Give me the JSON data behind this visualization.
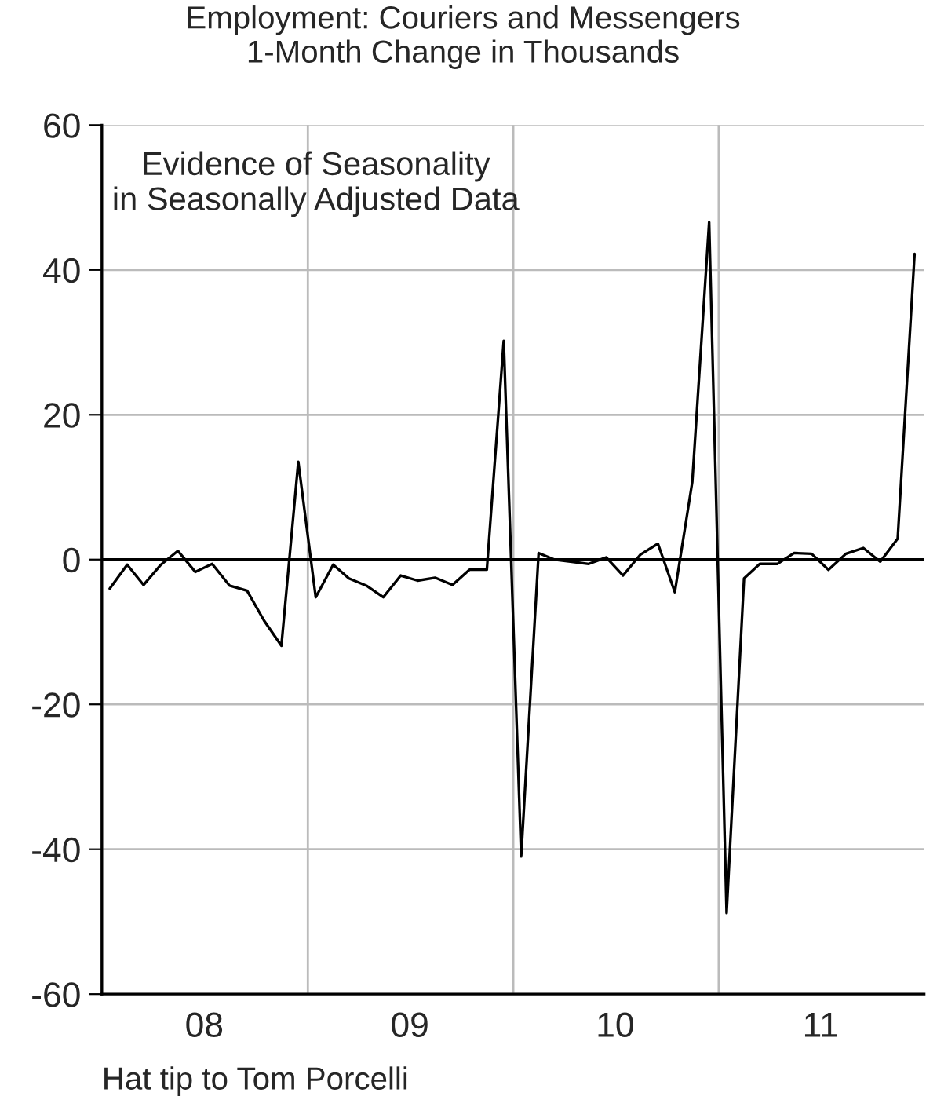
{
  "chart_data": {
    "type": "line",
    "title": "Employment: Couriers and Messengers\n1-Month Change in Thousands",
    "x": [
      "2008-01-15",
      "2008-02-15",
      "2008-03-15",
      "2008-04-15",
      "2008-05-15",
      "2008-06-15",
      "2008-07-15",
      "2008-08-15",
      "2008-09-15",
      "2008-10-15",
      "2008-11-15",
      "2008-12-15",
      "2009-01-15",
      "2009-02-15",
      "2009-03-15",
      "2009-04-15",
      "2009-05-15",
      "2009-06-15",
      "2009-07-15",
      "2009-08-15",
      "2009-09-15",
      "2009-10-15",
      "2009-11-15",
      "2009-12-15",
      "2010-01-15",
      "2010-02-15",
      "2010-03-15",
      "2010-04-15",
      "2010-05-15",
      "2010-06-15",
      "2010-07-15",
      "2010-08-15",
      "2010-09-15",
      "2010-10-15",
      "2010-11-15",
      "2010-12-15",
      "2011-01-15",
      "2011-02-15",
      "2011-03-15",
      "2011-04-15",
      "2011-05-15",
      "2011-06-15",
      "2011-07-15",
      "2011-08-15",
      "2011-09-15",
      "2011-10-15",
      "2011-11-15",
      "2011-12-15"
    ],
    "series": [
      {
        "color": "#000000",
        "values": [
          -4.0,
          -0.7,
          -3.5,
          -0.7,
          1.2,
          -1.7,
          -0.6,
          -3.6,
          -4.3,
          -8.4,
          -11.9,
          13.5,
          -5.2,
          -0.7,
          -2.6,
          -3.6,
          -5.2,
          -2.2,
          -2.9,
          -2.5,
          -3.5,
          -1.4,
          -1.4,
          30.2,
          -41.0,
          0.9,
          0.0,
          -0.3,
          -0.6,
          0.3,
          -2.2,
          0.7,
          2.2,
          -4.5,
          10.7,
          46.6,
          -48.8,
          -2.6,
          -0.6,
          -0.6,
          0.9,
          0.8,
          -1.4,
          0.8,
          1.6,
          -0.3,
          2.9,
          42.2
        ]
      }
    ],
    "xlim": [
      "2008-01-01",
      "2012-01-01"
    ],
    "xticks": [
      {
        "value": "2008-01-01",
        "label": null
      },
      {
        "value": "2008-07-01",
        "label": "08"
      },
      {
        "value": "2009-01-01",
        "label": null
      },
      {
        "value": "2009-07-01",
        "label": "09"
      },
      {
        "value": "2010-01-01",
        "label": null
      },
      {
        "value": "2010-07-01",
        "label": "10"
      },
      {
        "value": "2011-01-01",
        "label": null
      },
      {
        "value": "2011-07-01",
        "label": "11"
      }
    ],
    "ylim": [
      -60,
      60
    ],
    "yticks": [
      -60,
      -40,
      -20,
      0,
      20,
      40,
      60
    ],
    "grid": true,
    "marker": "none",
    "line_style": "solid",
    "ref_lines": [
      {
        "axis": "y",
        "value": 0,
        "color": "#000000"
      }
    ],
    "annotations": [
      "Evidence of Seasonality\nin Seasonally Adjusted Data",
      "Hat tip to Tom Porcelli"
    ]
  }
}
